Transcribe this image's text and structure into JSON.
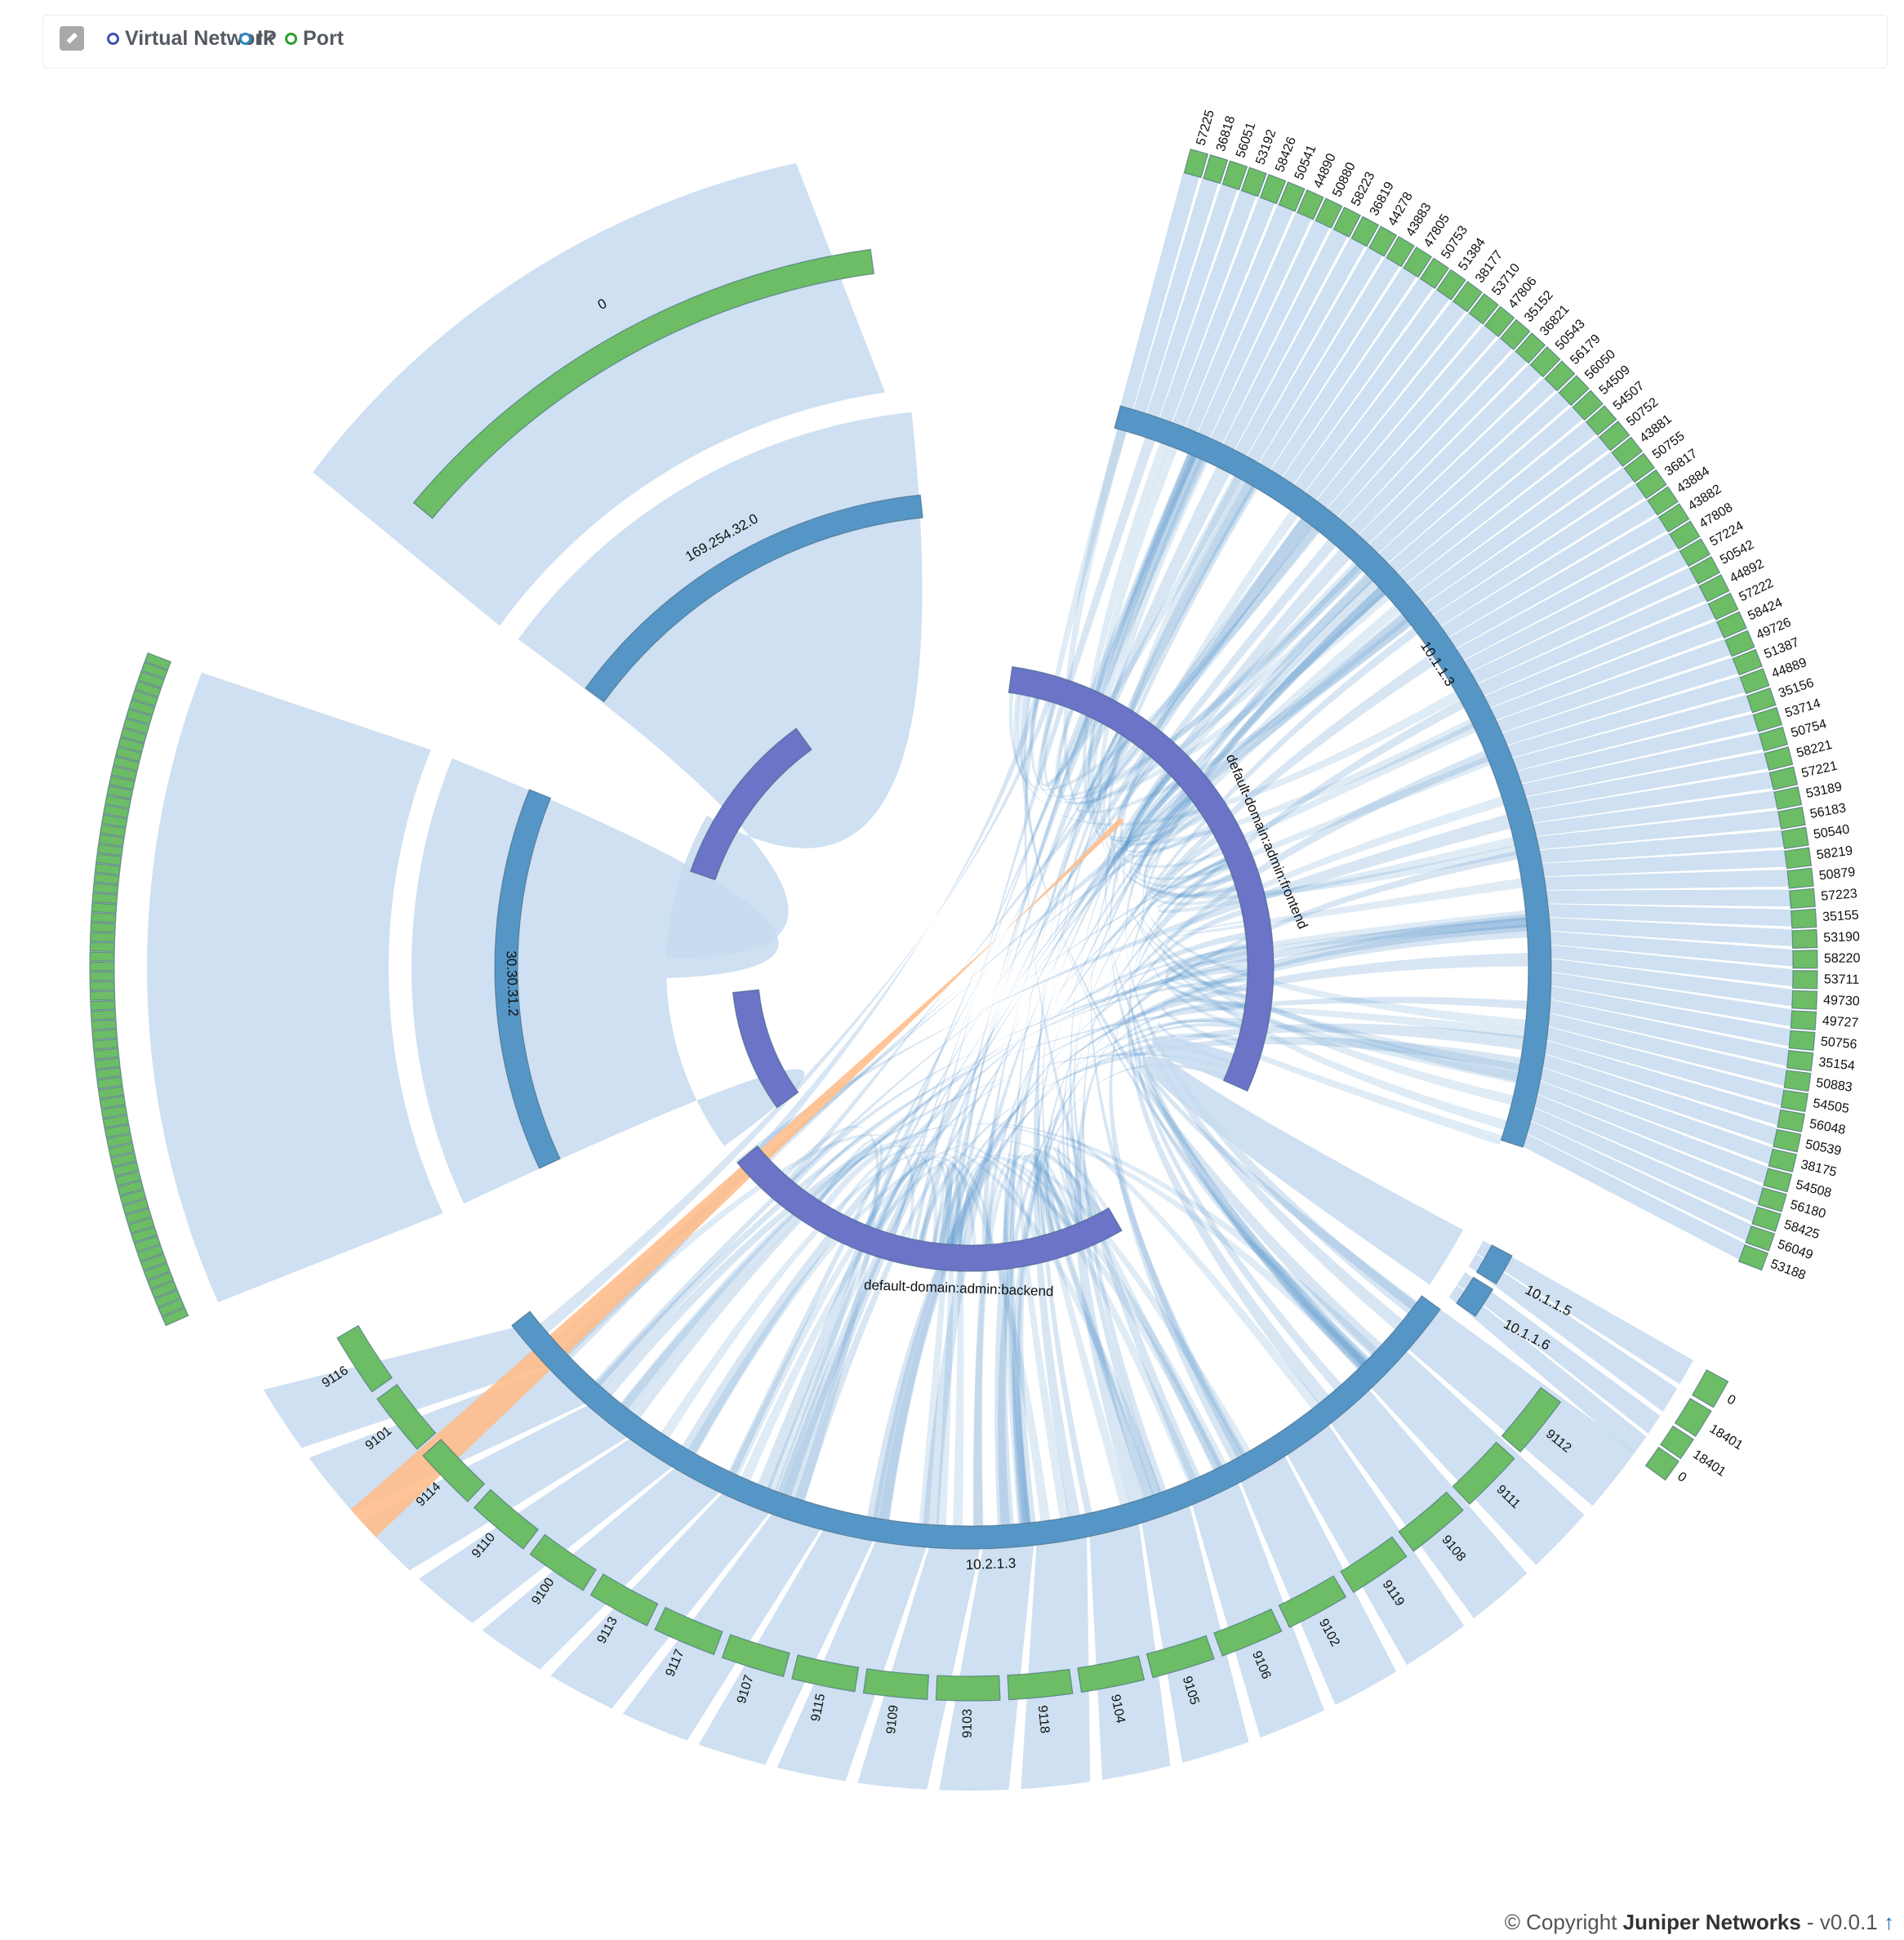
{
  "legend": {
    "items": [
      {
        "label": "Virtual Network",
        "color": "#3f51b5"
      },
      {
        "label": "IP",
        "color": "#2e87be"
      },
      {
        "label": "Port",
        "color": "#2ca02c"
      }
    ]
  },
  "colors": {
    "vn": "#6b74c6",
    "ip": "#5696c6",
    "port": "#6cbd66",
    "ribbon": "#c6dbee",
    "highlight": "#ffbe8c"
  },
  "virtual_networks": [
    {
      "label": "default-domain:admin:frontend"
    },
    {
      "label": "default-domain:admin:backend"
    }
  ],
  "ips": [
    {
      "label": "169.254.32.0"
    },
    {
      "label": "30.30.31.2"
    },
    {
      "label": "10.1.1.3"
    },
    {
      "label": "10.2.1.3"
    },
    {
      "label": "10.1.1.5"
    },
    {
      "label": "10.1.1.6"
    }
  ],
  "ports": {
    "ip_169": [
      "0"
    ],
    "ip_1013": [
      "57225",
      "36818",
      "56051",
      "53192",
      "58426",
      "50541",
      "44890",
      "50880",
      "58223",
      "36819",
      "44278",
      "43883",
      "47805",
      "50753",
      "51384",
      "38177",
      "53710",
      "47806",
      "35152",
      "36821",
      "50543",
      "56179",
      "56050",
      "54509",
      "54507",
      "50752",
      "43881",
      "50755",
      "36817",
      "43884",
      "43882",
      "47808",
      "57224",
      "50542",
      "44892",
      "57222",
      "58424",
      "49726",
      "51387",
      "44889",
      "35156",
      "53714",
      "50754",
      "58221",
      "57221",
      "53189",
      "56183",
      "50540",
      "58219",
      "50879",
      "57223",
      "35155",
      "53190",
      "58220",
      "53711",
      "49730",
      "49727",
      "50756",
      "35154",
      "50883",
      "54505",
      "56048",
      "50539",
      "38175",
      "54508",
      "56180",
      "58425",
      "56049",
      "53188"
    ],
    "ip_1015": [
      "0",
      "18401"
    ],
    "ip_1016": [
      "18401",
      "0"
    ],
    "ip_1023": [
      "9112",
      "9111",
      "9108",
      "9119",
      "9102",
      "9106",
      "9105",
      "9104",
      "9118",
      "9103",
      "9109",
      "9115",
      "9107",
      "9117",
      "9113",
      "9100",
      "9110",
      "9114",
      "9101",
      "9116"
    ]
  },
  "footer": {
    "prefix": "© Copyright ",
    "company": "Juniper Networks",
    "version": " - v0.0.1",
    "icon": "↑"
  }
}
